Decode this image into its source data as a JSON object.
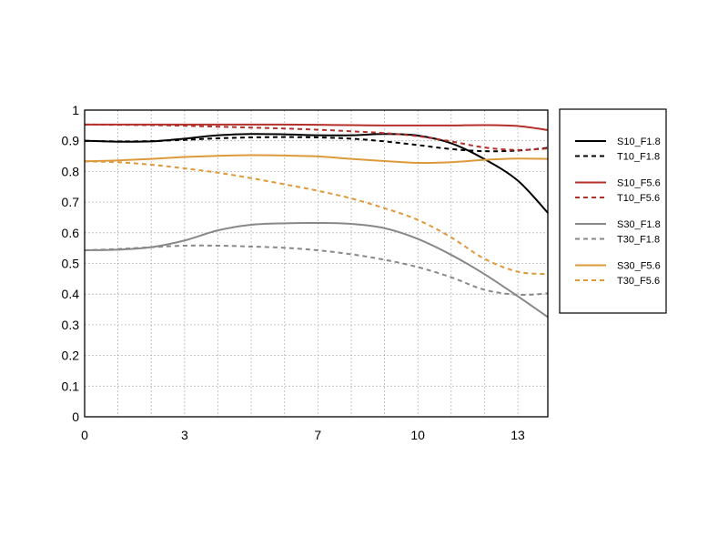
{
  "chart_data": {
    "type": "line",
    "xlim": [
      0,
      13.9
    ],
    "ylim": [
      0,
      1
    ],
    "xticks": [
      "0",
      "3",
      "7",
      "10",
      "13"
    ],
    "xtick_values": [
      0,
      3,
      7,
      10,
      13
    ],
    "yticks": [
      "0",
      "0.1",
      "0.2",
      "0.3",
      "0.4",
      "0.5",
      "0.6",
      "0.7",
      "0.8",
      "0.9",
      "1"
    ],
    "ytick_values": [
      0,
      0.1,
      0.2,
      0.3,
      0.4,
      0.5,
      0.6,
      0.7,
      0.8,
      0.9,
      1
    ],
    "grid": true,
    "legend_position": "right",
    "series": [
      {
        "name": "S10_F1.8",
        "color": "#000000",
        "dash": "solid",
        "x": [
          0,
          1,
          2,
          3,
          4,
          5,
          6,
          7,
          8,
          9,
          10,
          11,
          12,
          13,
          13.9
        ],
        "y": [
          0.9,
          0.897,
          0.898,
          0.907,
          0.918,
          0.922,
          0.921,
          0.918,
          0.918,
          0.922,
          0.917,
          0.892,
          0.84,
          0.77,
          0.665
        ]
      },
      {
        "name": "T10_F1.8",
        "color": "#000000",
        "dash": "dashed",
        "x": [
          0,
          1,
          2,
          3,
          4,
          5,
          6,
          7,
          8,
          9,
          10,
          11,
          12,
          13,
          13.9
        ],
        "y": [
          0.9,
          0.898,
          0.899,
          0.903,
          0.908,
          0.911,
          0.912,
          0.911,
          0.907,
          0.898,
          0.886,
          0.873,
          0.866,
          0.868,
          0.877
        ]
      },
      {
        "name": "S10_F5.6",
        "color": "#b5302a",
        "dash": "solid",
        "x": [
          0,
          1,
          2,
          3,
          4,
          5,
          6,
          7,
          8,
          9,
          10,
          11,
          12,
          13,
          13.9
        ],
        "y": [
          0.953,
          0.953,
          0.953,
          0.953,
          0.953,
          0.953,
          0.953,
          0.952,
          0.951,
          0.95,
          0.95,
          0.95,
          0.951,
          0.948,
          0.935
        ]
      },
      {
        "name": "T10_F5.6",
        "color": "#b5302a",
        "dash": "dashed",
        "x": [
          0,
          1,
          2,
          3,
          4,
          5,
          6,
          7,
          8,
          9,
          10,
          11,
          12,
          13,
          13.9
        ],
        "y": [
          0.953,
          0.952,
          0.951,
          0.949,
          0.946,
          0.943,
          0.94,
          0.936,
          0.931,
          0.925,
          0.915,
          0.898,
          0.878,
          0.87,
          0.875
        ]
      },
      {
        "name": "S30_F1.8",
        "color": "#888888",
        "dash": "solid",
        "x": [
          0,
          1,
          2,
          3,
          4,
          5,
          6,
          7,
          8,
          9,
          10,
          11,
          12,
          13,
          13.9
        ],
        "y": [
          0.543,
          0.545,
          0.553,
          0.575,
          0.608,
          0.626,
          0.631,
          0.632,
          0.629,
          0.615,
          0.58,
          0.528,
          0.465,
          0.393,
          0.325
        ]
      },
      {
        "name": "T30_F1.8",
        "color": "#888888",
        "dash": "dashed",
        "x": [
          0,
          1,
          2,
          3,
          4,
          5,
          6,
          7,
          8,
          9,
          10,
          11,
          12,
          13,
          13.9
        ],
        "y": [
          0.543,
          0.547,
          0.553,
          0.558,
          0.558,
          0.555,
          0.551,
          0.543,
          0.53,
          0.512,
          0.488,
          0.455,
          0.414,
          0.398,
          0.402
        ]
      },
      {
        "name": "S30_F5.6",
        "color": "#dd9a3c",
        "dash": "solid",
        "x": [
          0,
          1,
          2,
          3,
          4,
          5,
          6,
          7,
          8,
          9,
          10,
          11,
          12,
          13,
          13.9
        ],
        "y": [
          0.833,
          0.836,
          0.841,
          0.847,
          0.851,
          0.853,
          0.852,
          0.849,
          0.841,
          0.834,
          0.828,
          0.83,
          0.838,
          0.842,
          0.841
        ]
      },
      {
        "name": "T30_F5.6",
        "color": "#dd9a3c",
        "dash": "dashed",
        "x": [
          0,
          1,
          2,
          3,
          4,
          5,
          6,
          7,
          8,
          9,
          10,
          11,
          12,
          13,
          13.9
        ],
        "y": [
          0.833,
          0.83,
          0.822,
          0.81,
          0.796,
          0.778,
          0.758,
          0.737,
          0.712,
          0.68,
          0.642,
          0.585,
          0.515,
          0.473,
          0.465
        ]
      }
    ]
  }
}
